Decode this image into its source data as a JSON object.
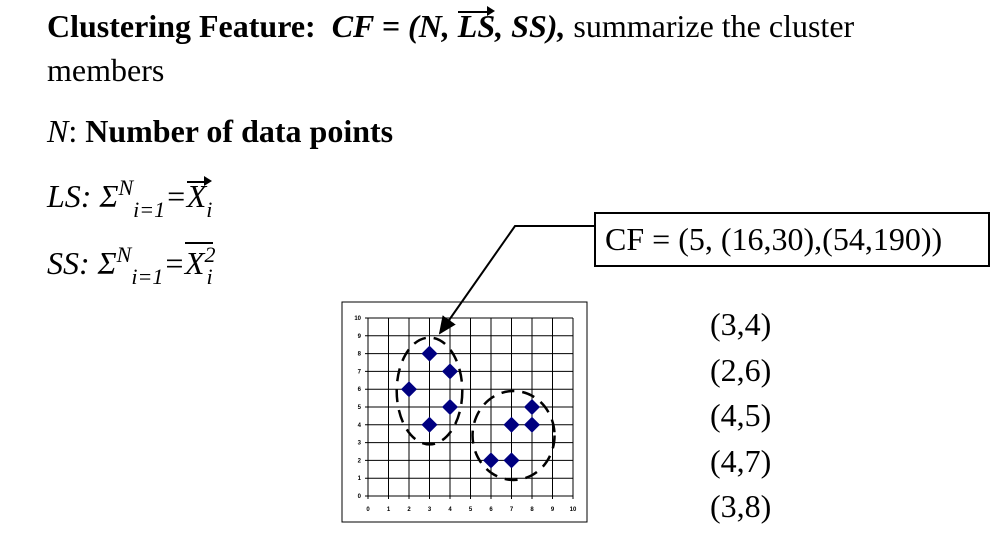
{
  "text": {
    "l1_a": "Clustering Feature:",
    "l1_b": "CF = (N,",
    "l1_c": "LS",
    "l1_d": ", SS),",
    "l1_e": "summarize the cluster",
    "l2": "members",
    "l3_a": "N",
    "l3_b": ":",
    "l3_c": "Number of data points",
    "ls_a": "LS: Σ",
    "ss_a": "SS: Σ",
    "sum_sup": "N",
    "sum_sub": "i=1",
    "eq": "=",
    "xvar": "X",
    "xsub": "i",
    "xsup": "2"
  },
  "cf_box": "CF = (5, (16,30),(54,190))",
  "points": [
    "(3,4)",
    "(2,6)",
    "(4,5)",
    "(4,7)",
    "(3,8)"
  ],
  "chart_data": {
    "type": "scatter",
    "title": "",
    "xlabel": "",
    "ylabel": "",
    "xlim": [
      0,
      10
    ],
    "ylim": [
      0,
      10
    ],
    "x_ticks": [
      "0",
      "1",
      "2",
      "3",
      "4",
      "5",
      "6",
      "7",
      "8",
      "9",
      "10"
    ],
    "y_ticks": [
      "0",
      "1",
      "2",
      "3",
      "4",
      "5",
      "6",
      "7",
      "8",
      "9",
      "10"
    ],
    "grid": true,
    "marker": "diamond",
    "color": "#000080",
    "series": [
      {
        "values": [
          [
            3,
            4
          ],
          [
            2,
            6
          ],
          [
            4,
            5
          ],
          [
            4,
            7
          ],
          [
            3,
            8
          ]
        ]
      },
      {
        "values": [
          [
            6,
            2
          ],
          [
            7,
            2
          ],
          [
            7,
            4
          ],
          [
            8,
            4
          ],
          [
            8,
            5
          ]
        ]
      }
    ],
    "clusters": [
      {
        "center": [
          3.0,
          5.9
        ],
        "radius": [
          1.6,
          3.0
        ]
      },
      {
        "center": [
          7.1,
          3.4
        ],
        "radius": [
          2.0,
          2.5
        ]
      }
    ]
  }
}
